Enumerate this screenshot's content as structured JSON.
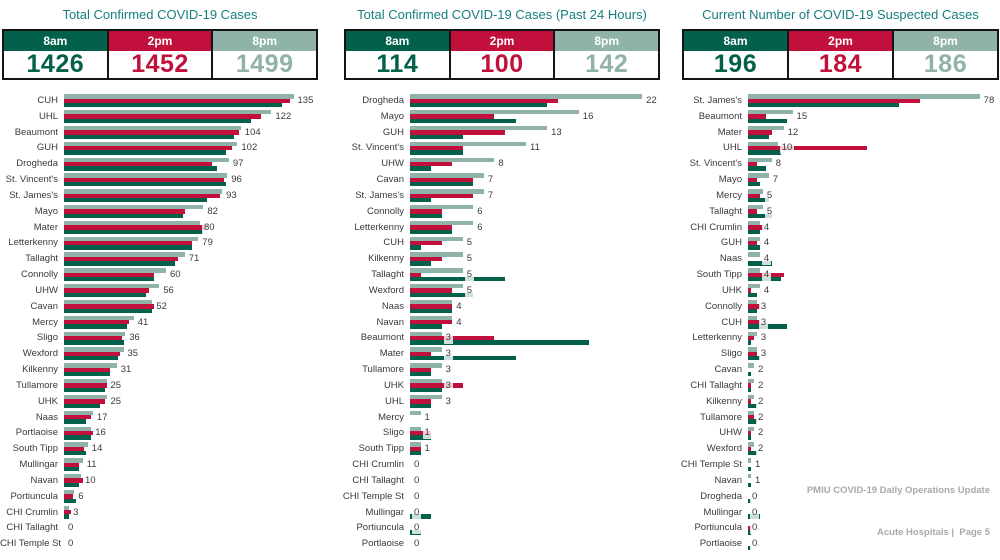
{
  "footer": {
    "line1": "PMIU COVID-19 Daily Operations Update",
    "line2": "Acute Hospitals |  Page 5"
  },
  "colors": {
    "time_8am": "#02604B",
    "time_2pm": "#C2103C",
    "time_8pm": "#8FB2A9",
    "title_text": "#177E7F",
    "label_text": "#3A3A3A",
    "footer_text": "#A9A9A9",
    "table_border": "#141414"
  },
  "chart_data": [
    {
      "type": "bar",
      "orientation": "horizontal",
      "title": "Total Confirmed COVID-19 Cases",
      "time_labels": [
        "8am",
        "2pm",
        "8pm"
      ],
      "totals": [
        "1426",
        "1452",
        "1499"
      ],
      "legend_position": "none",
      "grid": false,
      "xlim": [
        0,
        135
      ],
      "data_labels": "8pm series values shown right of bars",
      "note": "8pm values are labeled in the chart; 8am and 2pm bar values are estimated from bar lengths",
      "categories": [
        "CUH",
        "UHL",
        "Beaumont",
        "GUH",
        "Drogheda",
        "St. Vincent's",
        "St. James's",
        "Mayo",
        "Mater",
        "Letterkenny",
        "Tallaght",
        "Connolly",
        "UHW",
        "Cavan",
        "Mercy",
        "Sligo",
        "Wexford",
        "Kilkenny",
        "Tullamore",
        "UHK",
        "Naas",
        "Portlaoise",
        "South Tipp",
        "Mullingar",
        "Navan",
        "Portiuncula",
        "CHI Crumlin",
        "CHI Tallaght",
        "CHI Temple St"
      ],
      "series": [
        {
          "name": "8am",
          "values": [
            128,
            110,
            100,
            95,
            90,
            95,
            84,
            70,
            82,
            75,
            65,
            53,
            48,
            52,
            37,
            35,
            32,
            27,
            24,
            21,
            13,
            16,
            13,
            9,
            9,
            7,
            3,
            0,
            0
          ]
        },
        {
          "name": "2pm",
          "values": [
            133,
            116,
            103,
            99,
            87,
            94,
            92,
            71,
            84,
            75,
            67,
            53,
            50,
            53,
            38,
            34,
            33,
            27,
            25,
            24,
            16,
            17,
            12,
            9,
            11,
            5,
            4,
            0,
            0
          ]
        },
        {
          "name": "8pm",
          "values": [
            135,
            122,
            104,
            102,
            97,
            96,
            93,
            82,
            80,
            79,
            71,
            60,
            56,
            52,
            41,
            36,
            35,
            31,
            25,
            25,
            17,
            16,
            14,
            11,
            10,
            6,
            3,
            0,
            0
          ]
        }
      ]
    },
    {
      "type": "bar",
      "orientation": "horizontal",
      "title": "Total Confirmed COVID-19 Cases (Past 24 Hours)",
      "time_labels": [
        "8am",
        "2pm",
        "8pm"
      ],
      "totals": [
        "114",
        "100",
        "142"
      ],
      "legend_position": "none",
      "grid": false,
      "xlim": [
        0,
        22
      ],
      "data_labels": "8pm series values shown right of bars",
      "note": "8pm values are labeled in the chart; 8am and 2pm bar values are estimated from bar lengths",
      "categories": [
        "Drogheda",
        "Mayo",
        "GUH",
        "St. Vincent's",
        "UHW",
        "Cavan",
        "St. James's",
        "Connolly",
        "Letterkenny",
        "CUH",
        "Kilkenny",
        "Tallaght",
        "Wexford",
        "Naas",
        "Navan",
        "Beaumont",
        "Mater",
        "Tullamore",
        "UHK",
        "UHL",
        "Mercy",
        "Sligo",
        "South Tipp",
        "CHI Crumlin",
        "CHI Tallaght",
        "CHI Temple St",
        "Mullingar",
        "Portiuncula",
        "Portlaoise"
      ],
      "series": [
        {
          "name": "8am",
          "values": [
            13,
            10,
            5,
            5,
            2,
            6,
            2,
            3,
            4,
            1,
            2,
            9,
            6,
            4,
            3,
            17,
            10,
            2,
            3,
            2,
            0,
            2,
            1,
            0,
            0,
            0,
            2,
            1,
            0
          ]
        },
        {
          "name": "2pm",
          "values": [
            14,
            8,
            9,
            5,
            4,
            6,
            6,
            3,
            4,
            3,
            3,
            1,
            4,
            4,
            4,
            8,
            2,
            2,
            5,
            2,
            0,
            2,
            1,
            0,
            0,
            0,
            0,
            0,
            0
          ]
        },
        {
          "name": "8pm",
          "values": [
            22,
            16,
            13,
            11,
            8,
            7,
            7,
            6,
            6,
            5,
            5,
            5,
            5,
            4,
            4,
            3,
            3,
            3,
            3,
            3,
            1,
            1,
            1,
            0,
            0,
            0,
            0,
            0,
            0
          ]
        }
      ]
    },
    {
      "type": "bar",
      "orientation": "horizontal",
      "title": "Current Number of COVID-19 Suspected Cases",
      "time_labels": [
        "8am",
        "2pm",
        "8pm"
      ],
      "totals": [
        "196",
        "184",
        "186"
      ],
      "legend_position": "none",
      "grid": false,
      "xlim": [
        0,
        78
      ],
      "data_labels": "8pm series values shown right of bars",
      "note": "8pm values are labeled in the chart; 8am and 2pm bar values are estimated from bar lengths",
      "categories": [
        "St. James's",
        "Beaumont",
        "Mater",
        "UHL",
        "St. Vincent's",
        "Mayo",
        "Mercy",
        "Tallaght",
        "CHI Crumlin",
        "GUH",
        "Naas",
        "South Tipp",
        "UHK",
        "Connolly",
        "CUH",
        "Letterkenny",
        "Sligo",
        "Cavan",
        "CHI Tallaght",
        "Kilkenny",
        "Tullamore",
        "UHW",
        "Wexford",
        "CHI Temple St",
        "Navan",
        "Drogheda",
        "Mullingar",
        "Portiuncula",
        "Portlaoise"
      ],
      "series": [
        {
          "name": "8am",
          "values": [
            51,
            13,
            7,
            11,
            6,
            4,
            7,
            8,
            4,
            4,
            8,
            11,
            3,
            3,
            13,
            1,
            4,
            1,
            1,
            3,
            3,
            1,
            3,
            1,
            1,
            1,
            4,
            1,
            1
          ]
        },
        {
          "name": "2pm",
          "values": [
            58,
            6,
            8,
            40,
            3,
            3,
            4,
            3,
            5,
            3,
            0,
            12,
            1,
            4,
            4,
            2,
            3,
            0,
            1,
            1,
            2,
            1,
            1,
            0,
            0,
            0,
            0,
            1,
            0
          ]
        },
        {
          "name": "8pm",
          "values": [
            78,
            15,
            12,
            10,
            8,
            7,
            5,
            5,
            4,
            4,
            4,
            4,
            4,
            3,
            3,
            3,
            3,
            2,
            2,
            2,
            2,
            2,
            2,
            1,
            1,
            0,
            0,
            0,
            0
          ]
        }
      ]
    }
  ]
}
